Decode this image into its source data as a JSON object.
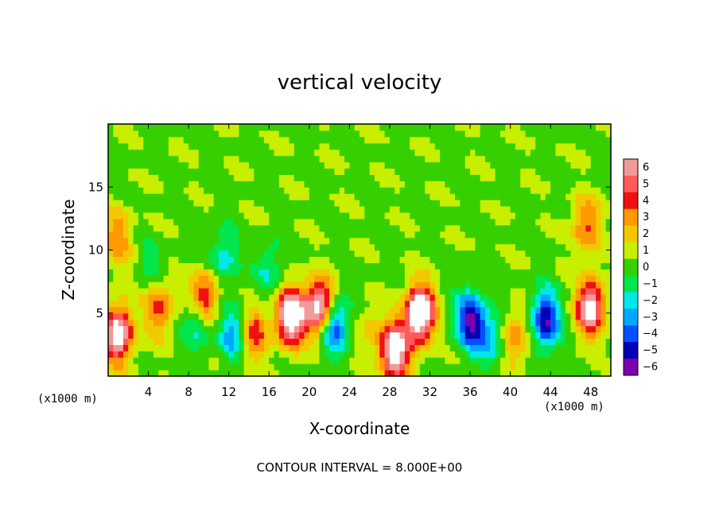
{
  "chart_data": {
    "type": "heatmap",
    "title": "vertical velocity",
    "xlabel": "X-coordinate",
    "ylabel": "Z-coordinate",
    "x_unit_left": "(x1000 m)",
    "x_unit_right": "(x1000 m)",
    "xlim": [
      0,
      50
    ],
    "ylim": [
      0,
      20
    ],
    "x_ticks": [
      4,
      8,
      12,
      16,
      20,
      24,
      28,
      32,
      36,
      40,
      44,
      48
    ],
    "y_ticks": [
      5,
      10,
      15
    ],
    "contour_interval_label": "CONTOUR INTERVAL = 8.000E+00",
    "colorbar": {
      "levels": [
        6,
        5,
        4,
        3,
        2,
        1,
        0,
        -1,
        -2,
        -3,
        -4,
        -5,
        -6
      ],
      "colors": [
        "#f29a9a",
        "#ff5a5a",
        "#f01010",
        "#ff9a00",
        "#f4c800",
        "#c8ee00",
        "#36d000",
        "#00e64c",
        "#00e8e8",
        "#00a8ff",
        "#0050ff",
        "#0000b4",
        "#7a00b0"
      ]
    },
    "features": [
      {
        "x": 1.0,
        "z": 3.4,
        "w": 7.5
      },
      {
        "x": 5.0,
        "z": 5.6,
        "w": 4.0
      },
      {
        "x": 9.5,
        "z": 5.9,
        "w": 6.0
      },
      {
        "x": 14.5,
        "z": 3.5,
        "w": 4.0
      },
      {
        "x": 18.2,
        "z": 4.8,
        "w": 8.5
      },
      {
        "x": 21.0,
        "z": 5.5,
        "w": 7.5
      },
      {
        "x": 28.5,
        "z": 2.0,
        "w": 8.0
      },
      {
        "x": 31.0,
        "z": 5.0,
        "w": 9.5
      },
      {
        "x": 36.0,
        "z": 4.5,
        "w": -6.0
      },
      {
        "x": 40.5,
        "z": 3.0,
        "w": 3.0
      },
      {
        "x": 43.5,
        "z": 4.5,
        "w": -6.0
      },
      {
        "x": 48.0,
        "z": 5.5,
        "w": 7.0
      },
      {
        "x": 9.0,
        "z": 4.5,
        "w": -4.0
      },
      {
        "x": 12.5,
        "z": 3.5,
        "w": -3.5
      },
      {
        "x": 22.5,
        "z": 4.0,
        "w": -5.0
      },
      {
        "x": 26.0,
        "z": 3.5,
        "w": 1.5
      },
      {
        "x": 1.0,
        "z": 11.0,
        "w": 3.0
      },
      {
        "x": 47.5,
        "z": 12.0,
        "w": 3.5
      },
      {
        "x": 11.5,
        "z": 9.5,
        "w": -2.5
      },
      {
        "x": 16.0,
        "z": 8.5,
        "w": -2.0
      },
      {
        "x": 4.5,
        "z": 8.5,
        "w": -1.5
      },
      {
        "x": 38.0,
        "z": 3.0,
        "w": -3.0
      }
    ]
  }
}
